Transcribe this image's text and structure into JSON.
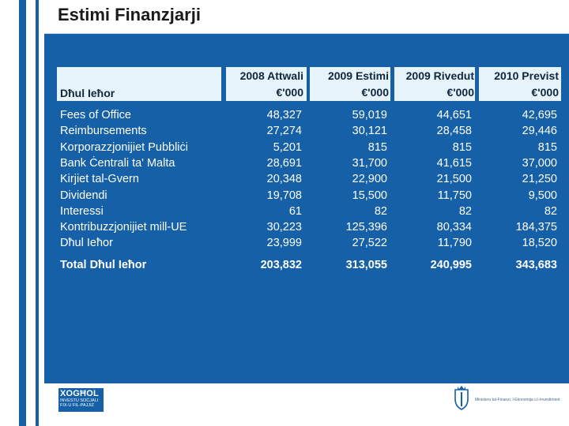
{
  "slide": {
    "title": "Estimi Finanzjarji"
  },
  "table": {
    "corner_label": "Dħul Ieħor",
    "columns": [
      {
        "line1": "2008 Attwali",
        "line2": "€'000"
      },
      {
        "line1": "2009 Estimi",
        "line2": "€'000"
      },
      {
        "line1": "2009 Rivedut",
        "line2": "€'000"
      },
      {
        "line1": "2010 Previst",
        "line2": "€'000"
      }
    ],
    "rows": [
      {
        "label": "Fees of Office",
        "values": [
          "48,327",
          "59,019",
          "44,651",
          "42,695"
        ]
      },
      {
        "label": "Reimbursements",
        "values": [
          "27,274",
          "30,121",
          "28,458",
          "29,446"
        ]
      },
      {
        "label": "Korporazzjonijiet Pubbliċi",
        "values": [
          "5,201",
          "815",
          "815",
          "815"
        ]
      },
      {
        "label": "Bank Ċentrali ta' Malta",
        "values": [
          "28,691",
          "31,700",
          "41,615",
          "37,000"
        ]
      },
      {
        "label": "Kirjiet tal-Gvern",
        "values": [
          "20,348",
          "22,900",
          "21,500",
          "21,250"
        ]
      },
      {
        "label": "Dividendi",
        "values": [
          "19,708",
          "15,500",
          "11,750",
          "9,500"
        ]
      },
      {
        "label": "Interessi",
        "values": [
          "61",
          "82",
          "82",
          "82"
        ]
      },
      {
        "label": "Kontribuzzjonijiet mill-UE",
        "values": [
          "30,223",
          "125,396",
          "80,334",
          "184,375"
        ]
      },
      {
        "label": "Dħul Ieħor",
        "values": [
          "23,999",
          "27,522",
          "11,790",
          "18,520"
        ]
      }
    ],
    "total": {
      "label": "Total Dħul Ieħor",
      "values": [
        "203,832",
        "313,055",
        "240,995",
        "343,683"
      ]
    }
  },
  "footer": {
    "logo_main": "XOGĦOL",
    "logo_sub": "INVESTU SOĊJALI FIX-U FIL-PAJJIŻ",
    "ministry": "Ministeru tal-Finanzi, l-Ekonomija u l-Investiment"
  },
  "colors": {
    "background": "#1560a6",
    "header_cell": "#e6f3fb",
    "header_text": "#10263d"
  }
}
